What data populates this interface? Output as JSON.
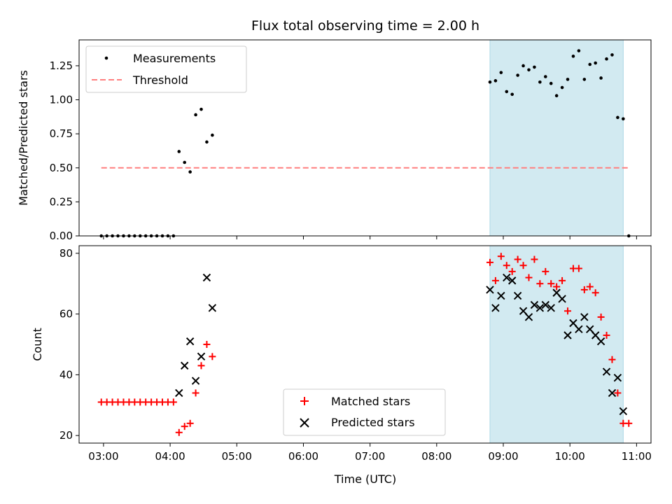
{
  "title": "Flux total observing time = 2.00 h",
  "colors": {
    "measurement": "#000000",
    "threshold": "#ff7f7f",
    "matched": "#ff0000",
    "predicted": "#000000",
    "span": "#add8e6"
  },
  "top": {
    "ylabel": "Matched/Predicted stars",
    "legend": {
      "placement": "upper-left",
      "measurements_label": "Measurements",
      "threshold_label": "Threshold"
    }
  },
  "bottom": {
    "ylabel": "Count",
    "xlabel": "Time (UTC)",
    "legend": {
      "placement": "lower-center",
      "matched_label": "Matched stars",
      "predicted_label": "Predicted stars"
    }
  },
  "chart_data": [
    {
      "type": "scatter",
      "title": "Flux total observing time = 2.00 h",
      "ylabel": "Matched/Predicted stars",
      "xlim": [
        "02:38",
        "11:13"
      ],
      "ylim": [
        0,
        1.44
      ],
      "yticks": [
        0.0,
        0.25,
        0.5,
        0.75,
        1.0,
        1.25
      ],
      "highlight_span": [
        "08:48",
        "10:48"
      ],
      "threshold": {
        "name": "Threshold",
        "value": 0.5,
        "x_range": [
          "02:58",
          "10:53"
        ]
      },
      "series": [
        {
          "name": "Measurements",
          "marker": "dot",
          "points": [
            [
              "02:58",
              0.0
            ],
            [
              "03:03",
              0.0
            ],
            [
              "03:08",
              0.0
            ],
            [
              "03:13",
              0.0
            ],
            [
              "03:18",
              0.0
            ],
            [
              "03:23",
              0.0
            ],
            [
              "03:28",
              0.0
            ],
            [
              "03:33",
              0.0
            ],
            [
              "03:38",
              0.0
            ],
            [
              "03:43",
              0.0
            ],
            [
              "03:48",
              0.0
            ],
            [
              "03:53",
              0.0
            ],
            [
              "03:58",
              0.0
            ],
            [
              "04:03",
              0.0
            ],
            [
              "04:08",
              0.62
            ],
            [
              "04:13",
              0.54
            ],
            [
              "04:18",
              0.47
            ],
            [
              "04:23",
              0.89
            ],
            [
              "04:28",
              0.93
            ],
            [
              "04:33",
              0.69
            ],
            [
              "04:38",
              0.74
            ],
            [
              "08:48",
              1.13
            ],
            [
              "08:53",
              1.14
            ],
            [
              "08:58",
              1.2
            ],
            [
              "09:03",
              1.06
            ],
            [
              "09:08",
              1.04
            ],
            [
              "09:13",
              1.18
            ],
            [
              "09:18",
              1.25
            ],
            [
              "09:23",
              1.22
            ],
            [
              "09:28",
              1.24
            ],
            [
              "09:33",
              1.13
            ],
            [
              "09:38",
              1.17
            ],
            [
              "09:43",
              1.12
            ],
            [
              "09:48",
              1.03
            ],
            [
              "09:53",
              1.09
            ],
            [
              "09:58",
              1.15
            ],
            [
              "10:03",
              1.32
            ],
            [
              "10:08",
              1.36
            ],
            [
              "10:13",
              1.15
            ],
            [
              "10:18",
              1.26
            ],
            [
              "10:23",
              1.27
            ],
            [
              "10:28",
              1.16
            ],
            [
              "10:33",
              1.3
            ],
            [
              "10:38",
              1.33
            ],
            [
              "10:43",
              0.87
            ],
            [
              "10:48",
              0.86
            ],
            [
              "10:53",
              0.0
            ]
          ]
        }
      ]
    },
    {
      "type": "scatter",
      "xlabel": "Time (UTC)",
      "ylabel": "Count",
      "xlim": [
        "02:38",
        "11:13"
      ],
      "ylim": [
        17.5,
        82.5
      ],
      "yticks": [
        20,
        40,
        60,
        80
      ],
      "xticks": [
        "03:00",
        "04:00",
        "05:00",
        "06:00",
        "07:00",
        "08:00",
        "09:00",
        "10:00",
        "11:00"
      ],
      "highlight_span": [
        "08:48",
        "10:48"
      ],
      "series": [
        {
          "name": "Matched stars",
          "marker": "plus",
          "points": [
            [
              "02:58",
              31
            ],
            [
              "03:03",
              31
            ],
            [
              "03:08",
              31
            ],
            [
              "03:13",
              31
            ],
            [
              "03:18",
              31
            ],
            [
              "03:23",
              31
            ],
            [
              "03:28",
              31
            ],
            [
              "03:33",
              31
            ],
            [
              "03:38",
              31
            ],
            [
              "03:43",
              31
            ],
            [
              "03:48",
              31
            ],
            [
              "03:53",
              31
            ],
            [
              "03:58",
              31
            ],
            [
              "04:03",
              31
            ],
            [
              "04:08",
              21
            ],
            [
              "04:13",
              23
            ],
            [
              "04:18",
              24
            ],
            [
              "04:23",
              34
            ],
            [
              "04:28",
              43
            ],
            [
              "04:33",
              50
            ],
            [
              "04:38",
              46
            ],
            [
              "08:48",
              77
            ],
            [
              "08:53",
              71
            ],
            [
              "08:58",
              79
            ],
            [
              "09:03",
              76
            ],
            [
              "09:08",
              74
            ],
            [
              "09:13",
              78
            ],
            [
              "09:18",
              76
            ],
            [
              "09:23",
              72
            ],
            [
              "09:28",
              78
            ],
            [
              "09:33",
              70
            ],
            [
              "09:38",
              74
            ],
            [
              "09:43",
              70
            ],
            [
              "09:48",
              69
            ],
            [
              "09:53",
              71
            ],
            [
              "09:58",
              61
            ],
            [
              "10:03",
              75
            ],
            [
              "10:08",
              75
            ],
            [
              "10:13",
              68
            ],
            [
              "10:18",
              69
            ],
            [
              "10:23",
              67
            ],
            [
              "10:28",
              59
            ],
            [
              "10:33",
              53
            ],
            [
              "10:38",
              45
            ],
            [
              "10:43",
              34
            ],
            [
              "10:48",
              24
            ],
            [
              "10:53",
              24
            ]
          ]
        },
        {
          "name": "Predicted stars",
          "marker": "x",
          "points": [
            [
              "04:08",
              34
            ],
            [
              "04:13",
              43
            ],
            [
              "04:18",
              51
            ],
            [
              "04:23",
              38
            ],
            [
              "04:28",
              46
            ],
            [
              "04:33",
              72
            ],
            [
              "04:38",
              62
            ],
            [
              "08:48",
              68
            ],
            [
              "08:53",
              62
            ],
            [
              "08:58",
              66
            ],
            [
              "09:03",
              72
            ],
            [
              "09:08",
              71
            ],
            [
              "09:13",
              66
            ],
            [
              "09:18",
              61
            ],
            [
              "09:23",
              59
            ],
            [
              "09:28",
              63
            ],
            [
              "09:33",
              62
            ],
            [
              "09:38",
              63
            ],
            [
              "09:43",
              62
            ],
            [
              "09:48",
              67
            ],
            [
              "09:53",
              65
            ],
            [
              "09:58",
              53
            ],
            [
              "10:03",
              57
            ],
            [
              "10:08",
              55
            ],
            [
              "10:13",
              59
            ],
            [
              "10:18",
              55
            ],
            [
              "10:23",
              53
            ],
            [
              "10:28",
              51
            ],
            [
              "10:33",
              41
            ],
            [
              "10:38",
              34
            ],
            [
              "10:43",
              39
            ],
            [
              "10:48",
              28
            ]
          ]
        }
      ]
    }
  ]
}
